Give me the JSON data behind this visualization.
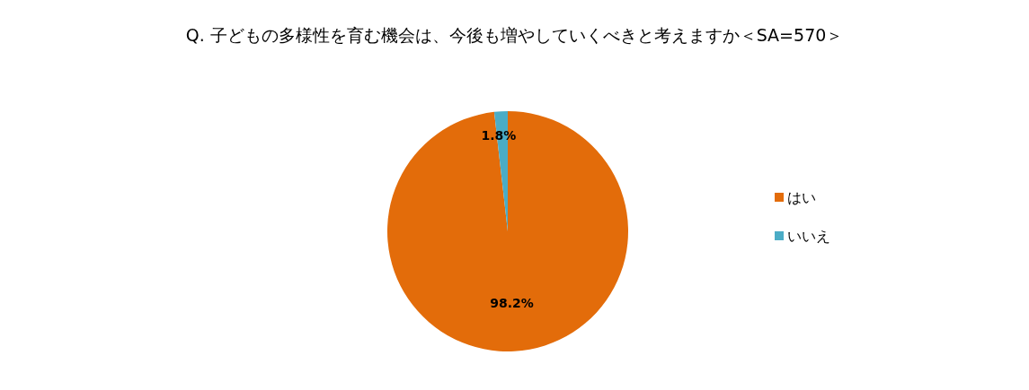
{
  "chart_data": {
    "type": "pie",
    "title": "Q. 子どもの多様性を育む機会は、今後も増やしていくべきと考えますか＜SA=570＞",
    "categories": [
      "はい",
      "いいえ"
    ],
    "values": [
      98.2,
      1.8
    ],
    "colors": [
      "#e36c0a",
      "#4bacc6"
    ],
    "value_labels": [
      "98.2%",
      "1.8%"
    ],
    "legend": "right"
  }
}
